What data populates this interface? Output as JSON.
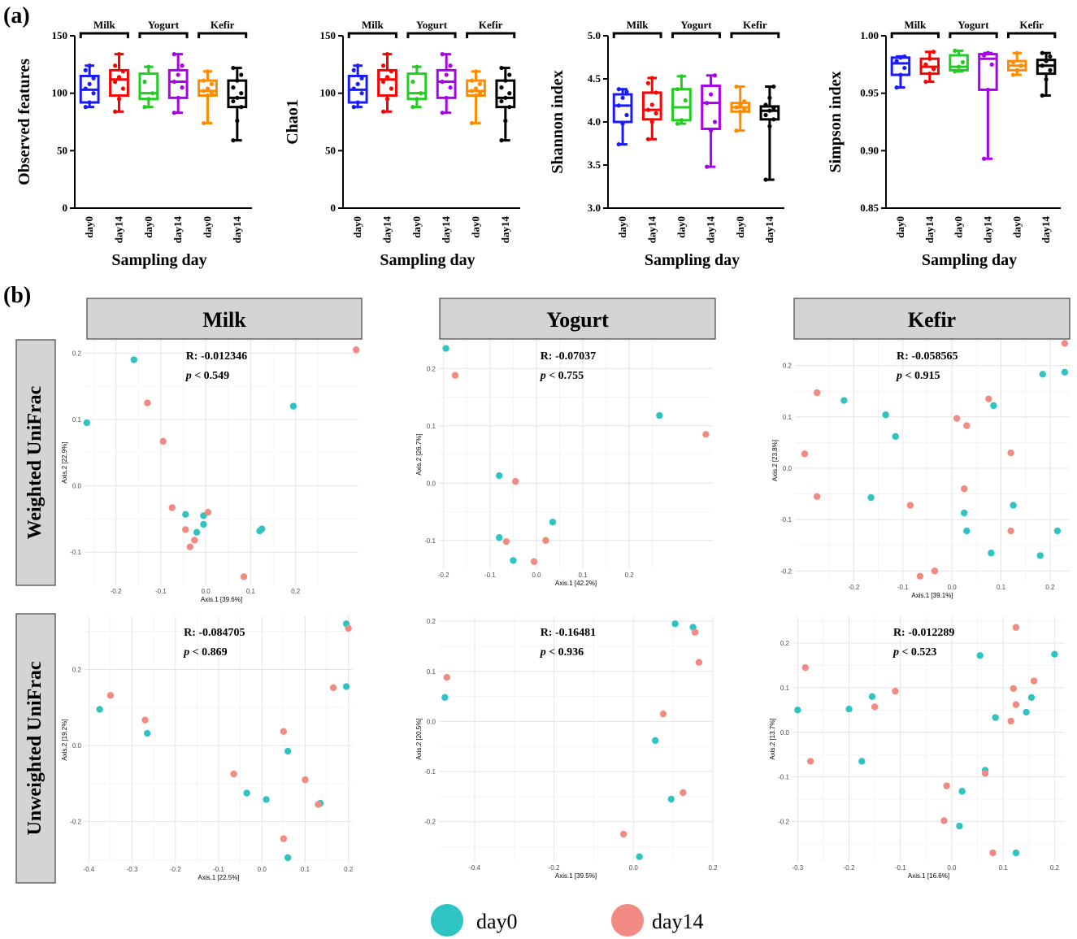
{
  "panel_a_label": "(a)",
  "panel_b_label": "(b)",
  "colors": {
    "Milk_day0": "#1a1aff",
    "Milk_day14": "#ff0000",
    "Yogurt_day0": "#22cc22",
    "Yogurt_day14": "#aa00ee",
    "Kefir_day0": "#ff8c00",
    "Kefir_day14": "#000000",
    "day0": "#2ec4c4",
    "day14": "#f08a82"
  },
  "chart_data": [
    {
      "type": "box",
      "panel": "a",
      "ylabel": "Observed features",
      "xlabel": "Sampling day",
      "ylim": [
        0,
        150
      ],
      "yticks": [
        0,
        50,
        100,
        150
      ],
      "categories": [
        "day0",
        "day14",
        "day0",
        "day14",
        "day0",
        "day14"
      ],
      "groups": [
        "Milk",
        "Yogurt",
        "Kefir"
      ],
      "boxes": [
        {
          "min": 88,
          "q1": 92,
          "median": 103,
          "q3": 115,
          "max": 124,
          "points": [
            88,
            92,
            100,
            104,
            108,
            113,
            120,
            124
          ]
        },
        {
          "min": 84,
          "q1": 98,
          "median": 112,
          "q3": 120,
          "max": 134,
          "points": [
            84,
            95,
            104,
            110,
            114,
            119,
            124,
            134
          ]
        },
        {
          "min": 88,
          "q1": 95,
          "median": 100,
          "q3": 117,
          "max": 123,
          "points": [
            88,
            95,
            100,
            110,
            123
          ]
        },
        {
          "min": 83,
          "q1": 96,
          "median": 110,
          "q3": 120,
          "max": 134,
          "points": [
            83,
            96,
            105,
            110,
            116,
            124,
            134
          ]
        },
        {
          "min": 74,
          "q1": 98,
          "median": 102,
          "q3": 111,
          "max": 119,
          "points": [
            74,
            98,
            100,
            102,
            104,
            108,
            111,
            119
          ]
        },
        {
          "min": 59,
          "q1": 88,
          "median": 96,
          "q3": 111,
          "max": 122,
          "points": [
            59,
            76,
            88,
            93,
            96,
            100,
            105,
            111,
            116,
            122
          ]
        }
      ]
    },
    {
      "type": "box",
      "panel": "a",
      "ylabel": "Chao1",
      "xlabel": "Sampling day",
      "ylim": [
        0,
        150
      ],
      "yticks": [
        0,
        50,
        100,
        150
      ],
      "categories": [
        "day0",
        "day14",
        "day0",
        "day14",
        "day0",
        "day14"
      ],
      "groups": [
        "Milk",
        "Yogurt",
        "Kefir"
      ],
      "boxes": [
        {
          "min": 88,
          "q1": 92,
          "median": 103,
          "q3": 115,
          "max": 124,
          "points": [
            88,
            92,
            100,
            104,
            108,
            113,
            120,
            124
          ]
        },
        {
          "min": 84,
          "q1": 98,
          "median": 112,
          "q3": 120,
          "max": 134,
          "points": [
            84,
            95,
            104,
            110,
            114,
            119,
            124,
            134
          ]
        },
        {
          "min": 88,
          "q1": 95,
          "median": 100,
          "q3": 117,
          "max": 123,
          "points": [
            88,
            95,
            100,
            110,
            123
          ]
        },
        {
          "min": 83,
          "q1": 96,
          "median": 110,
          "q3": 120,
          "max": 134,
          "points": [
            83,
            96,
            105,
            110,
            116,
            124,
            134
          ]
        },
        {
          "min": 74,
          "q1": 98,
          "median": 102,
          "q3": 111,
          "max": 119,
          "points": [
            74,
            98,
            100,
            102,
            104,
            108,
            111,
            119
          ]
        },
        {
          "min": 59,
          "q1": 88,
          "median": 96,
          "q3": 111,
          "max": 122,
          "points": [
            59,
            76,
            88,
            93,
            96,
            100,
            105,
            111,
            116,
            122
          ]
        }
      ]
    },
    {
      "type": "box",
      "panel": "a",
      "ylabel": "Shannon index",
      "xlabel": "Sampling day",
      "ylim": [
        3.0,
        5.0
      ],
      "yticks": [
        3.0,
        3.5,
        4.0,
        4.5,
        5.0
      ],
      "categories": [
        "day0",
        "day14",
        "day0",
        "day14",
        "day0",
        "day14"
      ],
      "groups": [
        "Milk",
        "Yogurt",
        "Kefir"
      ],
      "boxes": [
        {
          "min": 3.74,
          "q1": 4.0,
          "median": 4.19,
          "q3": 4.32,
          "max": 4.38,
          "points": [
            3.74,
            3.98,
            4.08,
            4.19,
            4.28,
            4.35,
            4.38
          ]
        },
        {
          "min": 3.8,
          "q1": 4.03,
          "median": 4.14,
          "q3": 4.34,
          "max": 4.51,
          "points": [
            3.8,
            4.0,
            4.1,
            4.14,
            4.2,
            4.34,
            4.45,
            4.51
          ]
        },
        {
          "min": 3.98,
          "q1": 4.02,
          "median": 4.17,
          "q3": 4.38,
          "max": 4.53,
          "points": [
            3.98,
            4.02,
            4.25,
            4.38,
            4.53
          ]
        },
        {
          "min": 3.48,
          "q1": 3.92,
          "median": 4.22,
          "q3": 4.42,
          "max": 4.54,
          "points": [
            3.48,
            3.9,
            4.0,
            4.22,
            4.32,
            4.54
          ]
        },
        {
          "min": 3.9,
          "q1": 4.12,
          "median": 4.17,
          "q3": 4.22,
          "max": 4.41,
          "points": [
            3.9,
            4.12,
            4.15,
            4.17,
            4.2,
            4.24,
            4.41
          ]
        },
        {
          "min": 3.33,
          "q1": 4.03,
          "median": 4.13,
          "q3": 4.18,
          "max": 4.41,
          "points": [
            3.33,
            3.95,
            4.03,
            4.08,
            4.13,
            4.16,
            4.2,
            4.28,
            4.41
          ]
        }
      ]
    },
    {
      "type": "box",
      "panel": "a",
      "ylabel": "Simpson index",
      "xlabel": "Sampling day",
      "ylim": [
        0.85,
        1.0
      ],
      "yticks": [
        0.85,
        0.9,
        0.95,
        1.0
      ],
      "tick_format": 2,
      "categories": [
        "day0",
        "day14",
        "day0",
        "day14",
        "day0",
        "day14"
      ],
      "groups": [
        "Milk",
        "Yogurt",
        "Kefir"
      ],
      "boxes": [
        {
          "min": 0.955,
          "q1": 0.966,
          "median": 0.976,
          "q3": 0.981,
          "max": 0.982,
          "points": [
            0.955,
            0.966,
            0.972,
            0.978,
            0.981,
            0.982
          ]
        },
        {
          "min": 0.96,
          "q1": 0.967,
          "median": 0.973,
          "q3": 0.98,
          "max": 0.986,
          "points": [
            0.96,
            0.967,
            0.971,
            0.975,
            0.98,
            0.986
          ]
        },
        {
          "min": 0.969,
          "q1": 0.97,
          "median": 0.973,
          "q3": 0.983,
          "max": 0.987,
          "points": [
            0.969,
            0.973,
            0.977,
            0.987
          ]
        },
        {
          "min": 0.893,
          "q1": 0.953,
          "median": 0.98,
          "q3": 0.984,
          "max": 0.985,
          "points": [
            0.893,
            0.953,
            0.975,
            0.983,
            0.985
          ]
        },
        {
          "min": 0.966,
          "q1": 0.97,
          "median": 0.974,
          "q3": 0.978,
          "max": 0.985,
          "points": [
            0.966,
            0.97,
            0.974,
            0.977,
            0.985
          ]
        },
        {
          "min": 0.948,
          "q1": 0.967,
          "median": 0.974,
          "q3": 0.979,
          "max": 0.985,
          "points": [
            0.948,
            0.962,
            0.97,
            0.974,
            0.978,
            0.982,
            0.985
          ]
        }
      ]
    },
    {
      "type": "scatter",
      "panel": "b",
      "metric": "Weighted UniFrac",
      "group": "Milk",
      "xlabel": "Axis.1  [39.6%]",
      "ylabel": "Axis.2  [22.9%]",
      "xlim": [
        -0.27,
        0.34
      ],
      "ylim": [
        -0.15,
        0.22
      ],
      "xticks": [
        -0.2,
        -0.1,
        0.0,
        0.1,
        0.2
      ],
      "yticks": [
        -0.1,
        0.0,
        0.1,
        0.2
      ],
      "stat_R": "R: -0.012346",
      "stat_p": "< 0.549",
      "day0": [
        [
          -0.265,
          0.095
        ],
        [
          -0.16,
          0.19
        ],
        [
          0.195,
          0.12
        ],
        [
          -0.045,
          -0.043
        ],
        [
          -0.005,
          -0.045
        ],
        [
          -0.02,
          -0.07
        ],
        [
          -0.005,
          -0.058
        ],
        [
          0.12,
          -0.068
        ],
        [
          0.125,
          -0.065
        ]
      ],
      "day14": [
        [
          0.335,
          0.205
        ],
        [
          -0.13,
          0.125
        ],
        [
          -0.095,
          0.067
        ],
        [
          -0.075,
          -0.033
        ],
        [
          -0.045,
          -0.066
        ],
        [
          -0.025,
          -0.082
        ],
        [
          -0.035,
          -0.092
        ],
        [
          0.005,
          -0.04
        ],
        [
          0.085,
          -0.137
        ]
      ]
    },
    {
      "type": "scatter",
      "panel": "b",
      "metric": "Weighted UniFrac",
      "group": "Yogurt",
      "xlabel": "Axis.1  [42.2%]",
      "ylabel": "Axis.2  [26.7%]",
      "xlim": [
        -0.21,
        0.38
      ],
      "ylim": [
        -0.15,
        0.25
      ],
      "xticks": [
        -0.2,
        -0.1,
        0.0,
        0.1,
        0.2
      ],
      "yticks": [
        -0.1,
        0.0,
        0.1,
        0.2
      ],
      "stat_R": "R: -0.07037",
      "stat_p": "< 0.755",
      "day0": [
        [
          -0.195,
          0.235
        ],
        [
          0.265,
          0.118
        ],
        [
          -0.08,
          0.013
        ],
        [
          -0.08,
          -0.095
        ],
        [
          -0.05,
          -0.135
        ],
        [
          0.035,
          -0.068
        ]
      ],
      "day14": [
        [
          -0.175,
          0.188
        ],
        [
          0.365,
          0.085
        ],
        [
          -0.045,
          0.003
        ],
        [
          -0.065,
          -0.102
        ],
        [
          -0.005,
          -0.137
        ],
        [
          0.02,
          -0.1
        ]
      ]
    },
    {
      "type": "scatter",
      "panel": "b",
      "metric": "Weighted UniFrac",
      "group": "Kefir",
      "xlabel": "Axis.1  [39.1%]",
      "ylabel": "Axis.2  [23.8%]",
      "xlim": [
        -0.32,
        0.24
      ],
      "ylim": [
        -0.22,
        0.25
      ],
      "xticks": [
        -0.2,
        -0.1,
        0.0,
        0.1,
        0.2
      ],
      "yticks": [
        -0.2,
        -0.1,
        0.0,
        0.1,
        0.2
      ],
      "stat_R": "R: -0.058565",
      "stat_p": "< 0.915",
      "day0": [
        [
          -0.22,
          0.132
        ],
        [
          -0.135,
          0.104
        ],
        [
          -0.115,
          0.062
        ],
        [
          0.085,
          0.122
        ],
        [
          0.185,
          0.183
        ],
        [
          0.23,
          0.187
        ],
        [
          -0.165,
          -0.057
        ],
        [
          0.025,
          -0.087
        ],
        [
          0.03,
          -0.122
        ],
        [
          0.125,
          -0.072
        ],
        [
          0.08,
          -0.165
        ],
        [
          0.18,
          -0.17
        ],
        [
          0.215,
          -0.122
        ]
      ],
      "day14": [
        [
          -0.3,
          0.028
        ],
        [
          -0.275,
          0.147
        ],
        [
          -0.275,
          -0.055
        ],
        [
          -0.085,
          -0.072
        ],
        [
          0.01,
          0.097
        ],
        [
          0.03,
          0.083
        ],
        [
          0.075,
          0.135
        ],
        [
          0.025,
          -0.04
        ],
        [
          0.12,
          -0.122
        ],
        [
          0.12,
          0.03
        ],
        [
          -0.065,
          -0.21
        ],
        [
          -0.035,
          -0.2
        ],
        [
          0.23,
          0.243
        ]
      ]
    },
    {
      "type": "scatter",
      "panel": "b",
      "metric": "Unweighted UniFrac",
      "group": "Milk",
      "xlabel": "Axis.1  [22.5%]",
      "ylabel": "Axis.2  [19.2%]",
      "xlim": [
        -0.41,
        0.21
      ],
      "ylim": [
        -0.31,
        0.34
      ],
      "xticks": [
        -0.4,
        -0.3,
        -0.2,
        -0.1,
        0.0,
        0.1,
        0.2
      ],
      "yticks": [
        -0.2,
        0.0,
        0.2
      ],
      "stat_R": "R: -0.084705",
      "stat_p": "< 0.869",
      "day0": [
        [
          -0.375,
          0.095
        ],
        [
          -0.265,
          0.032
        ],
        [
          0.195,
          0.32
        ],
        [
          0.195,
          0.155
        ],
        [
          0.06,
          -0.015
        ],
        [
          -0.035,
          -0.125
        ],
        [
          0.01,
          -0.142
        ],
        [
          0.135,
          -0.152
        ],
        [
          0.06,
          -0.295
        ]
      ],
      "day14": [
        [
          -0.35,
          0.132
        ],
        [
          -0.27,
          0.067
        ],
        [
          0.2,
          0.308
        ],
        [
          0.165,
          0.152
        ],
        [
          0.05,
          0.037
        ],
        [
          -0.065,
          -0.075
        ],
        [
          0.1,
          -0.09
        ],
        [
          0.13,
          -0.155
        ],
        [
          0.05,
          -0.245
        ]
      ]
    },
    {
      "type": "scatter",
      "panel": "b",
      "metric": "Unweighted UniFrac",
      "group": "Yogurt",
      "xlabel": "Axis.1  [39.5%]",
      "ylabel": "Axis.2  [20.5%]",
      "xlim": [
        -0.49,
        0.2
      ],
      "ylim": [
        -0.28,
        0.21
      ],
      "xticks": [
        -0.4,
        -0.2,
        0.0,
        0.2
      ],
      "yticks": [
        -0.2,
        -0.1,
        0.0,
        0.1,
        0.2
      ],
      "stat_R": "R: -0.16481",
      "stat_p": "< 0.936",
      "day0": [
        [
          -0.475,
          0.048
        ],
        [
          0.105,
          0.195
        ],
        [
          0.15,
          0.188
        ],
        [
          0.055,
          -0.038
        ],
        [
          0.095,
          -0.155
        ],
        [
          0.015,
          -0.27
        ]
      ],
      "day14": [
        [
          -0.47,
          0.088
        ],
        [
          0.155,
          0.178
        ],
        [
          0.165,
          0.118
        ],
        [
          0.075,
          0.015
        ],
        [
          0.125,
          -0.142
        ],
        [
          -0.025,
          -0.225
        ]
      ]
    },
    {
      "type": "scatter",
      "panel": "b",
      "metric": "Unweighted UniFrac",
      "group": "Kefir",
      "xlabel": "Axis.1  [16.6%]",
      "ylabel": "Axis.2  [13.7%]",
      "xlim": [
        -0.31,
        0.22
      ],
      "ylim": [
        -0.29,
        0.26
      ],
      "xticks": [
        -0.3,
        -0.2,
        -0.1,
        0.0,
        0.1,
        0.2
      ],
      "yticks": [
        -0.2,
        -0.1,
        0.0,
        0.1,
        0.2
      ],
      "stat_R": "R: -0.012289",
      "stat_p": "< 0.523",
      "day0": [
        [
          -0.3,
          0.05
        ],
        [
          -0.2,
          0.052
        ],
        [
          -0.155,
          0.08
        ],
        [
          -0.175,
          -0.065
        ],
        [
          0.055,
          0.172
        ],
        [
          0.2,
          0.175
        ],
        [
          0.085,
          0.033
        ],
        [
          0.145,
          0.045
        ],
        [
          0.155,
          0.078
        ],
        [
          0.065,
          -0.085
        ],
        [
          0.02,
          -0.132
        ],
        [
          0.015,
          -0.21
        ],
        [
          0.125,
          -0.27
        ]
      ],
      "day14": [
        [
          -0.285,
          0.145
        ],
        [
          -0.275,
          -0.065
        ],
        [
          -0.15,
          0.057
        ],
        [
          -0.11,
          0.092
        ],
        [
          0.12,
          0.098
        ],
        [
          0.125,
          0.062
        ],
        [
          0.115,
          0.025
        ],
        [
          0.16,
          0.115
        ],
        [
          0.125,
          0.235
        ],
        [
          0.065,
          -0.092
        ],
        [
          -0.01,
          -0.12
        ],
        [
          -0.015,
          -0.198
        ],
        [
          0.08,
          -0.27
        ]
      ]
    }
  ],
  "strip_labels": [
    "Milk",
    "Yogurt",
    "Kefir"
  ],
  "row_labels": [
    "Weighted UniFrac",
    "Unweighted UniFrac"
  ],
  "p_symbol": "p",
  "legend": {
    "day0": "day0",
    "day14": "day14"
  }
}
